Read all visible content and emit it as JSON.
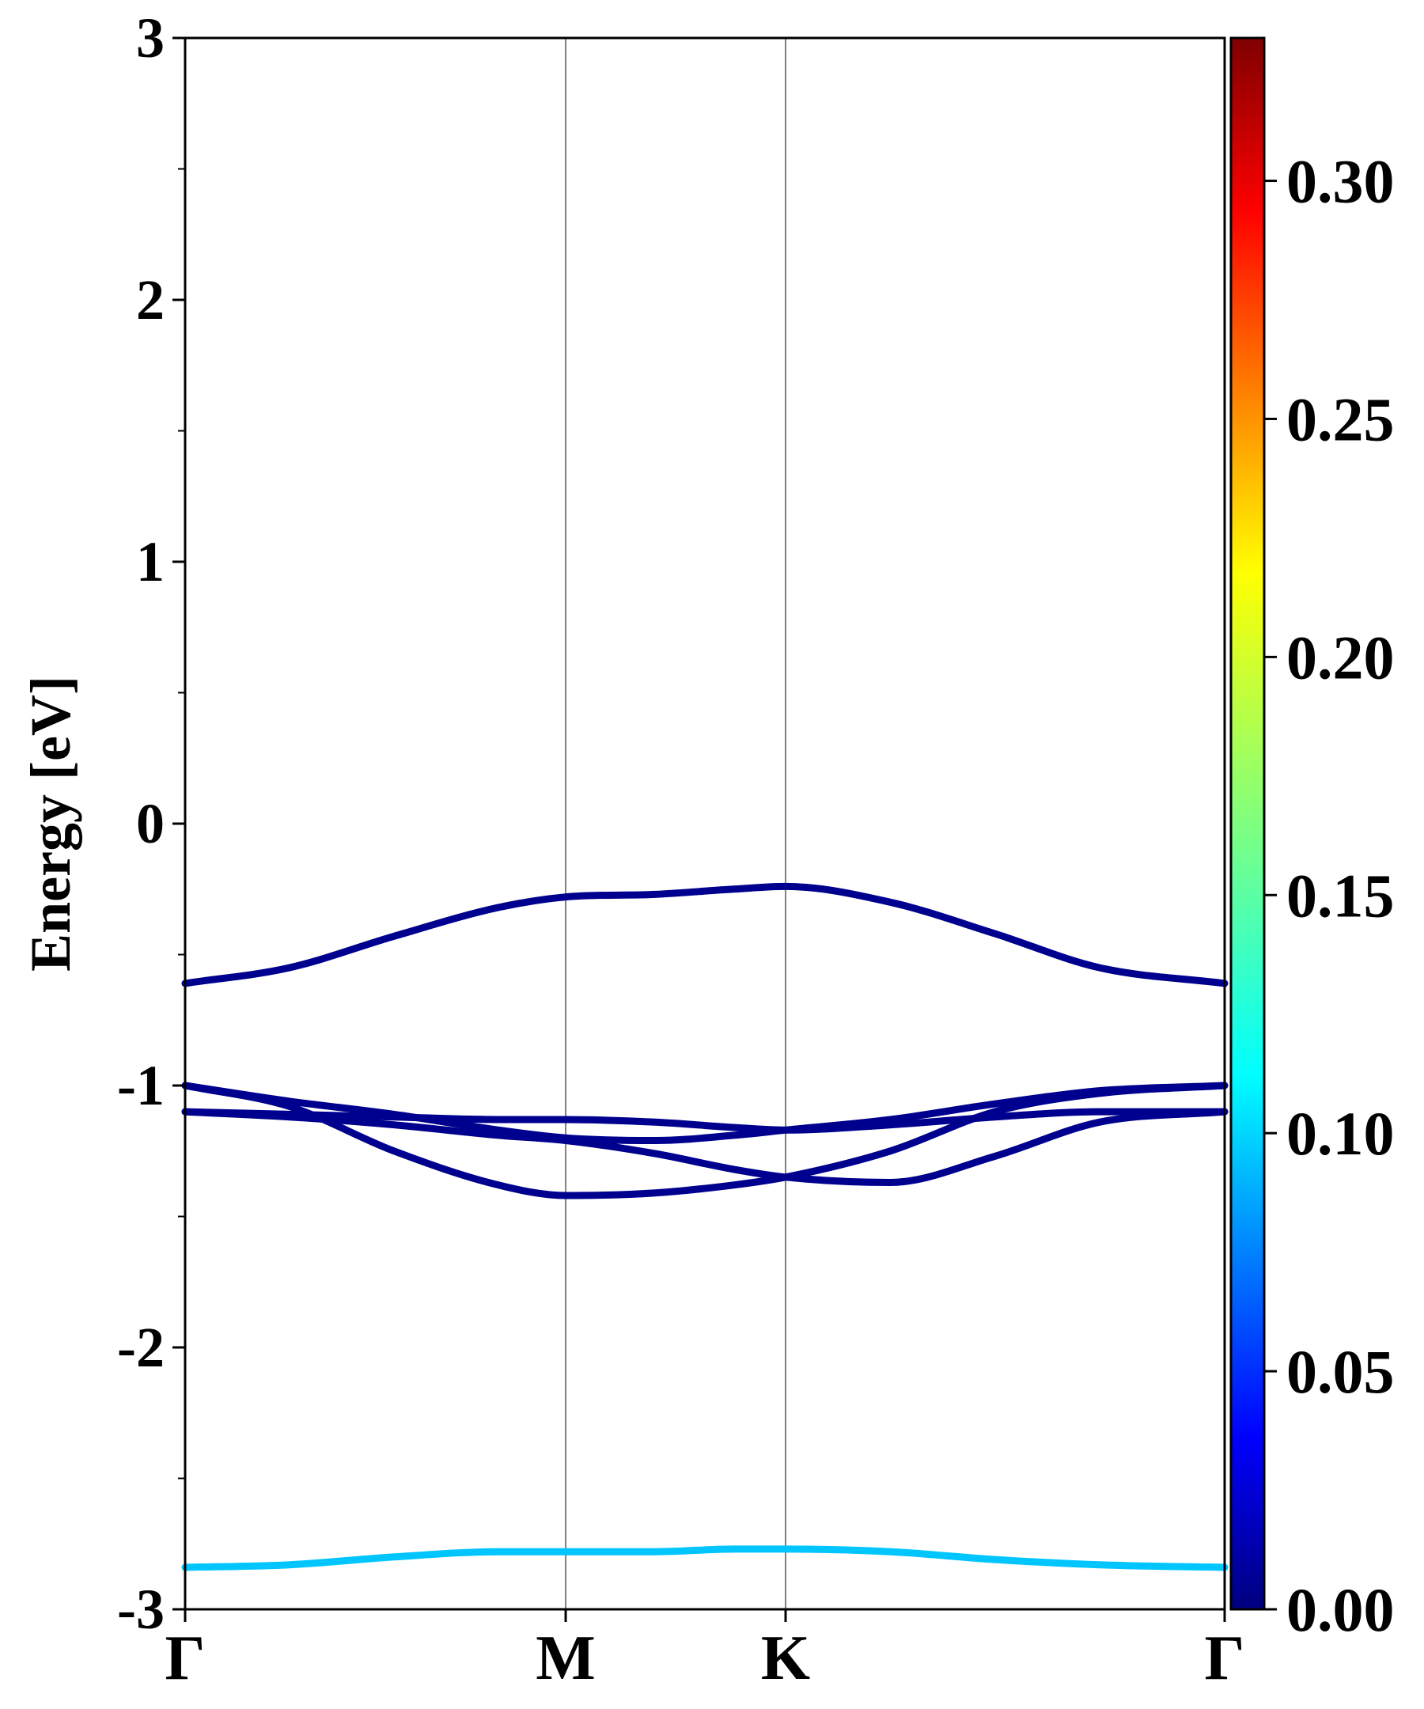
{
  "chart_data": {
    "type": "line",
    "title": "",
    "xlabel": "",
    "ylabel": "Energy [eV]",
    "ylim": [
      -3,
      3
    ],
    "xlim": [
      0,
      3.98
    ],
    "y_ticks": [
      3,
      2,
      1,
      0,
      -1,
      -2,
      -3
    ],
    "y_tick_labels": [
      "3",
      "2",
      "1",
      "0",
      "-1",
      "-2",
      "-3"
    ],
    "k_points": [
      {
        "label": "Γ",
        "x": 0
      },
      {
        "label": "M",
        "x": 1.457
      },
      {
        "label": "K",
        "x": 2.299
      },
      {
        "label": "Γ",
        "x": 3.98
      }
    ],
    "grid": false,
    "colorbar": {
      "colormap": "jet",
      "range": [
        0,
        0.33
      ],
      "ticks": [
        0.0,
        0.05,
        0.1,
        0.15,
        0.2,
        0.25,
        0.3
      ],
      "tick_labels": [
        "0.00",
        "0.05",
        "0.10",
        "0.15",
        "0.20",
        "0.25",
        "0.30"
      ]
    },
    "series": [
      {
        "weight": 0.005,
        "x": [
          0,
          0.4,
          0.8,
          1.2,
          1.457,
          1.8,
          2.1,
          2.299,
          2.7,
          3.1,
          3.5,
          3.98
        ],
        "y": [
          -0.61,
          -0.55,
          -0.43,
          -0.32,
          -0.28,
          -0.27,
          -0.25,
          -0.24,
          -0.3,
          -0.42,
          -0.55,
          -0.61
        ]
      },
      {
        "weight": 0.005,
        "x": [
          0,
          0.4,
          0.8,
          1.2,
          1.457,
          1.8,
          2.1,
          2.299,
          2.7,
          3.1,
          3.5,
          3.98
        ],
        "y": [
          -1.0,
          -1.06,
          -1.11,
          -1.17,
          -1.2,
          -1.21,
          -1.19,
          -1.17,
          -1.13,
          -1.07,
          -1.02,
          -1.0
        ]
      },
      {
        "weight": 0.005,
        "x": [
          0,
          0.4,
          0.8,
          1.2,
          1.457,
          1.8,
          2.1,
          2.299,
          2.7,
          3.1,
          3.5,
          3.98
        ],
        "y": [
          -1.1,
          -1.11,
          -1.12,
          -1.13,
          -1.13,
          -1.14,
          -1.16,
          -1.17,
          -1.15,
          -1.12,
          -1.1,
          -1.1
        ]
      },
      {
        "weight": 0.005,
        "x": [
          0,
          0.4,
          0.8,
          1.2,
          1.457,
          1.8,
          2.1,
          2.299,
          2.7,
          3.1,
          3.5,
          3.98
        ],
        "y": [
          -1.0,
          -1.08,
          -1.25,
          -1.38,
          -1.42,
          -1.41,
          -1.38,
          -1.35,
          -1.25,
          -1.1,
          -1.03,
          -1.0
        ]
      },
      {
        "weight": 0.005,
        "x": [
          0,
          0.4,
          0.8,
          1.2,
          1.457,
          1.8,
          2.1,
          2.299,
          2.7,
          3.1,
          3.5,
          3.98
        ],
        "y": [
          -1.1,
          -1.12,
          -1.15,
          -1.19,
          -1.21,
          -1.26,
          -1.32,
          -1.35,
          -1.37,
          -1.27,
          -1.14,
          -1.1
        ]
      },
      {
        "weight": 0.105,
        "x": [
          0,
          0.4,
          0.8,
          1.2,
          1.457,
          1.8,
          2.1,
          2.299,
          2.7,
          3.1,
          3.5,
          3.98
        ],
        "y": [
          -2.84,
          -2.83,
          -2.8,
          -2.78,
          -2.78,
          -2.78,
          -2.77,
          -2.77,
          -2.78,
          -2.81,
          -2.83,
          -2.84
        ]
      }
    ]
  }
}
